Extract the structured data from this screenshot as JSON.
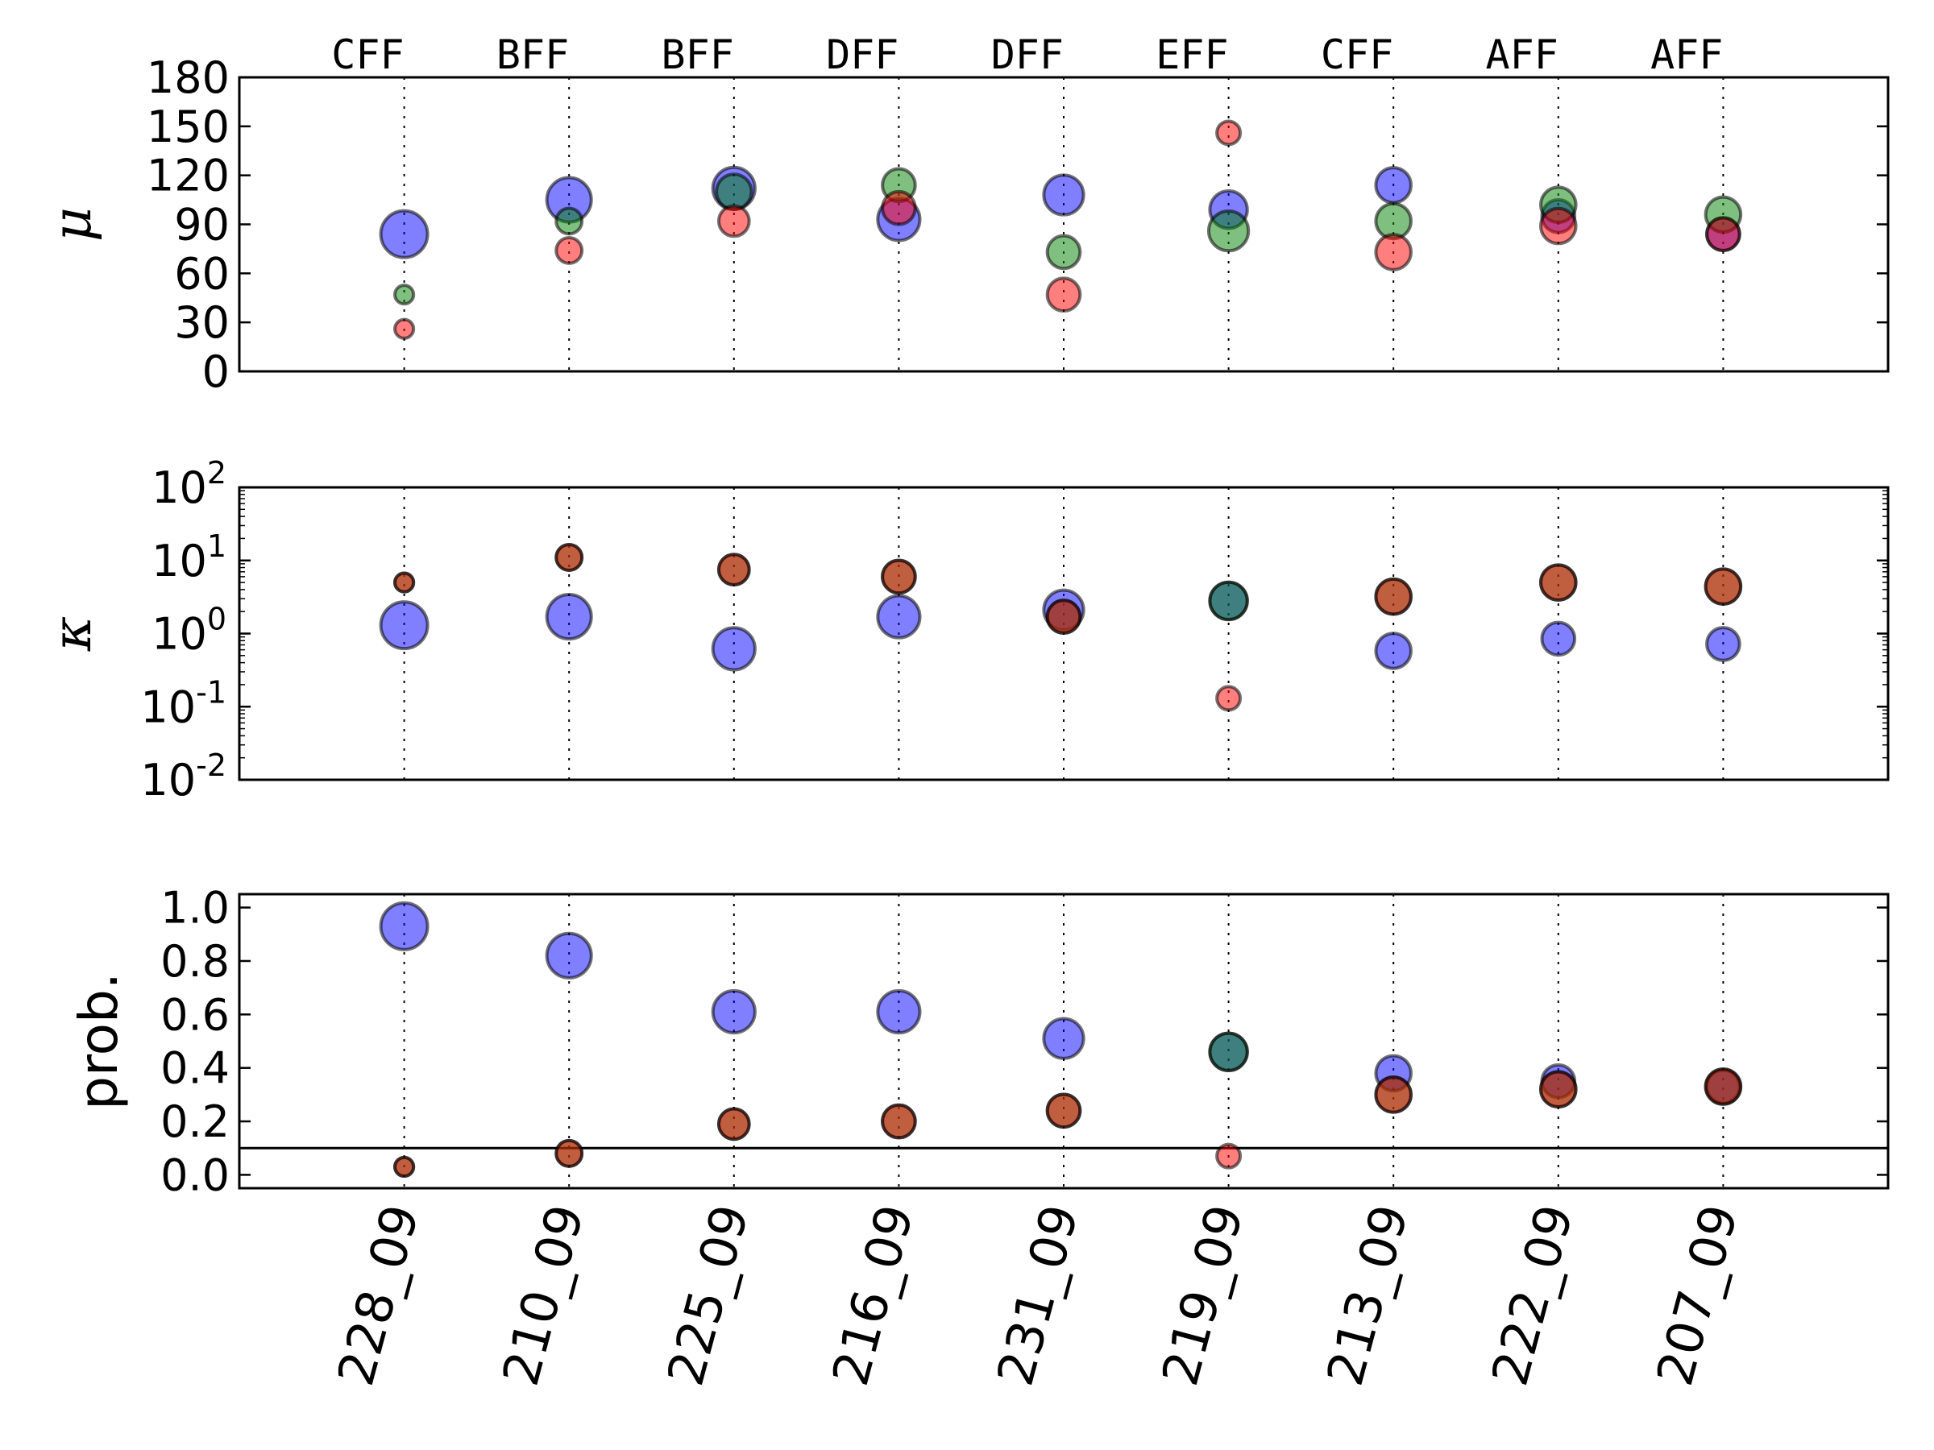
{
  "chart_data": [
    {
      "type": "scatter",
      "ylabel": "μ",
      "ylim": [
        0,
        180
      ],
      "yticks": [
        "0",
        "30",
        "60",
        "90",
        "120",
        "150",
        "180"
      ],
      "categories": [
        "228_09",
        "210_09",
        "225_09",
        "216_09",
        "231_09",
        "219_09",
        "213_09",
        "222_09",
        "207_09"
      ],
      "group_labels": [
        "CFF",
        "BFF",
        "BFF",
        "DFF",
        "DFF",
        "EFF",
        "CFF",
        "AFF",
        "AFF"
      ],
      "grid": "vertical dotted at categories",
      "series": [
        {
          "color": "#0000ff",
          "values": [
            84,
            105,
            112,
            93,
            108,
            99,
            114,
            95,
            84
          ],
          "sizes": [
            1.0,
            0.95,
            0.9,
            0.9,
            0.85,
            0.8,
            0.75,
            0.7,
            0.7
          ]
        },
        {
          "color": "#008000",
          "values": [
            47,
            92,
            110,
            114,
            73,
            86,
            92,
            102,
            96
          ],
          "sizes": [
            0.4,
            0.55,
            0.75,
            0.7,
            0.7,
            0.85,
            0.75,
            0.75,
            0.75
          ]
        },
        {
          "color": "#ff0000",
          "values": [
            26,
            74,
            92,
            100,
            47,
            146,
            73,
            89,
            84
          ],
          "sizes": [
            0.4,
            0.55,
            0.65,
            0.7,
            0.7,
            0.5,
            0.75,
            0.75,
            0.7
          ]
        }
      ]
    },
    {
      "type": "scatter",
      "ylabel": "κ",
      "yscale": "log",
      "ylim": [
        0.01,
        100
      ],
      "yticks": [
        {
          "base": "10",
          "exp": "-2"
        },
        {
          "base": "10",
          "exp": "-1"
        },
        {
          "base": "10",
          "exp": "0"
        },
        {
          "base": "10",
          "exp": "1"
        },
        {
          "base": "10",
          "exp": "2"
        }
      ],
      "categories": [
        "228_09",
        "210_09",
        "225_09",
        "216_09",
        "231_09",
        "219_09",
        "213_09",
        "222_09",
        "207_09"
      ],
      "series": [
        {
          "color": "#0000ff",
          "values": [
            1.3,
            1.7,
            0.62,
            1.7,
            2.1,
            2.8,
            0.58,
            0.85,
            0.72
          ],
          "sizes": [
            1.0,
            0.95,
            0.9,
            0.9,
            0.85,
            0.8,
            0.75,
            0.7,
            0.7
          ]
        },
        {
          "color": "#008000",
          "values": [
            5,
            11,
            7.5,
            6,
            1.7,
            2.8,
            3.2,
            5,
            4.4
          ],
          "sizes": [
            0.4,
            0.55,
            0.65,
            0.7,
            0.7,
            0.8,
            0.75,
            0.75,
            0.75
          ]
        },
        {
          "color": "#ff0000",
          "values": [
            5,
            11,
            7.5,
            6,
            1.7,
            0.13,
            3.2,
            5,
            4.4
          ],
          "sizes": [
            0.4,
            0.55,
            0.65,
            0.7,
            0.7,
            0.5,
            0.75,
            0.75,
            0.75
          ]
        }
      ]
    },
    {
      "type": "scatter",
      "ylabel": "prob.",
      "ylim": [
        -0.05,
        1.05
      ],
      "yticks": [
        "0.0",
        "0.2",
        "0.4",
        "0.6",
        "0.8",
        "1.0"
      ],
      "reference_line": 0.1,
      "categories": [
        "228_09",
        "210_09",
        "225_09",
        "216_09",
        "231_09",
        "219_09",
        "213_09",
        "222_09",
        "207_09"
      ],
      "series": [
        {
          "color": "#0000ff",
          "values": [
            0.93,
            0.82,
            0.61,
            0.61,
            0.51,
            0.46,
            0.38,
            0.35,
            0.33
          ],
          "sizes": [
            1.0,
            0.95,
            0.9,
            0.9,
            0.85,
            0.8,
            0.75,
            0.7,
            0.7
          ]
        },
        {
          "color": "#008000",
          "values": [
            0.03,
            0.08,
            0.19,
            0.2,
            0.24,
            0.46,
            0.3,
            0.32,
            0.33
          ],
          "sizes": [
            0.4,
            0.55,
            0.65,
            0.7,
            0.7,
            0.8,
            0.75,
            0.75,
            0.75
          ]
        },
        {
          "color": "#ff0000",
          "values": [
            0.03,
            0.08,
            0.19,
            0.2,
            0.24,
            0.07,
            0.3,
            0.32,
            0.33
          ],
          "sizes": [
            0.4,
            0.55,
            0.65,
            0.7,
            0.7,
            0.5,
            0.75,
            0.75,
            0.75
          ]
        }
      ]
    }
  ]
}
